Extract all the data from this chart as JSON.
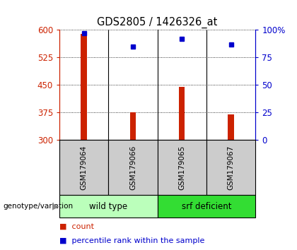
{
  "title": "GDS2805 / 1426326_at",
  "samples": [
    "GSM179064",
    "GSM179066",
    "GSM179065",
    "GSM179067"
  ],
  "counts": [
    590,
    375,
    445,
    370
  ],
  "percentiles": [
    97,
    85,
    92,
    87
  ],
  "y_min": 300,
  "y_max": 600,
  "y_ticks": [
    300,
    375,
    450,
    525,
    600
  ],
  "y_right_ticks": [
    0,
    25,
    50,
    75,
    100
  ],
  "bar_color": "#cc2200",
  "dot_color": "#0000cc",
  "groups": [
    {
      "label": "wild type",
      "indices": [
        0,
        1
      ],
      "color": "#bbffbb"
    },
    {
      "label": "srf deficient",
      "indices": [
        2,
        3
      ],
      "color": "#33dd33"
    }
  ],
  "group_label_prefix": "genotype/variation",
  "sample_box_color": "#cccccc",
  "bar_width": 0.12,
  "legend_items": [
    {
      "color": "#cc2200",
      "label": "count"
    },
    {
      "color": "#0000cc",
      "label": "percentile rank within the sample"
    }
  ]
}
